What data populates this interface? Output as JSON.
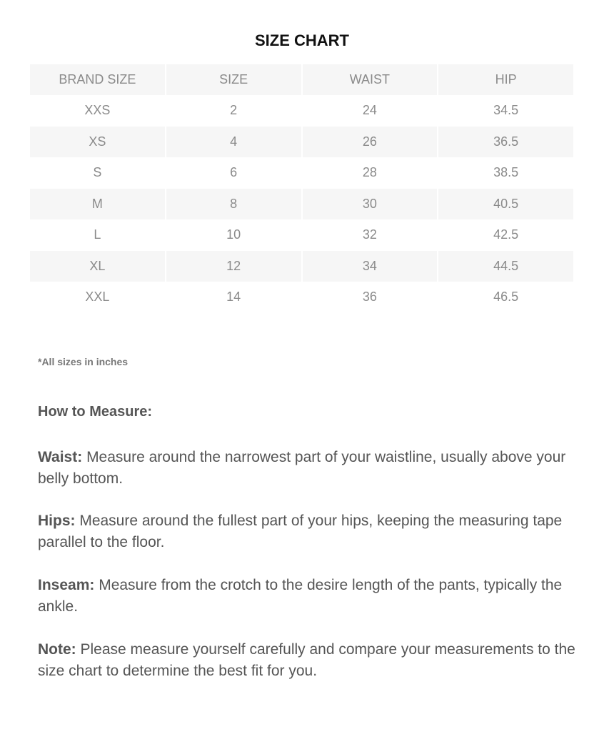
{
  "title": "SIZE CHART",
  "table": {
    "headers": [
      "BRAND SIZE",
      "SIZE",
      "WAIST",
      "HIP"
    ],
    "rows": [
      [
        "XXS",
        "2",
        "24",
        "34.5"
      ],
      [
        "XS",
        "4",
        "26",
        "36.5"
      ],
      [
        "S",
        "6",
        "28",
        "38.5"
      ],
      [
        "M",
        "8",
        "30",
        "40.5"
      ],
      [
        "L",
        "10",
        "32",
        "42.5"
      ],
      [
        "XL",
        "12",
        "34",
        "44.5"
      ],
      [
        "XXL",
        "14",
        "36",
        "46.5"
      ]
    ]
  },
  "footnote": "*All sizes in inches",
  "how_to_measure": "How to Measure:",
  "instructions": [
    {
      "label": "Waist:",
      "text": " Measure around the narrowest part of your waistline, usually above your belly bottom."
    },
    {
      "label": "Hips:",
      "text": " Measure around the fullest part of your hips, keeping the measuring tape parallel to the floor."
    },
    {
      "label": "Inseam:",
      "text": " Measure from the crotch to the desire length of the pants, typically the ankle."
    },
    {
      "label": "Note:",
      "text": " Please measure yourself carefully and compare your measurements to the size chart to determine the best fit for you."
    }
  ]
}
